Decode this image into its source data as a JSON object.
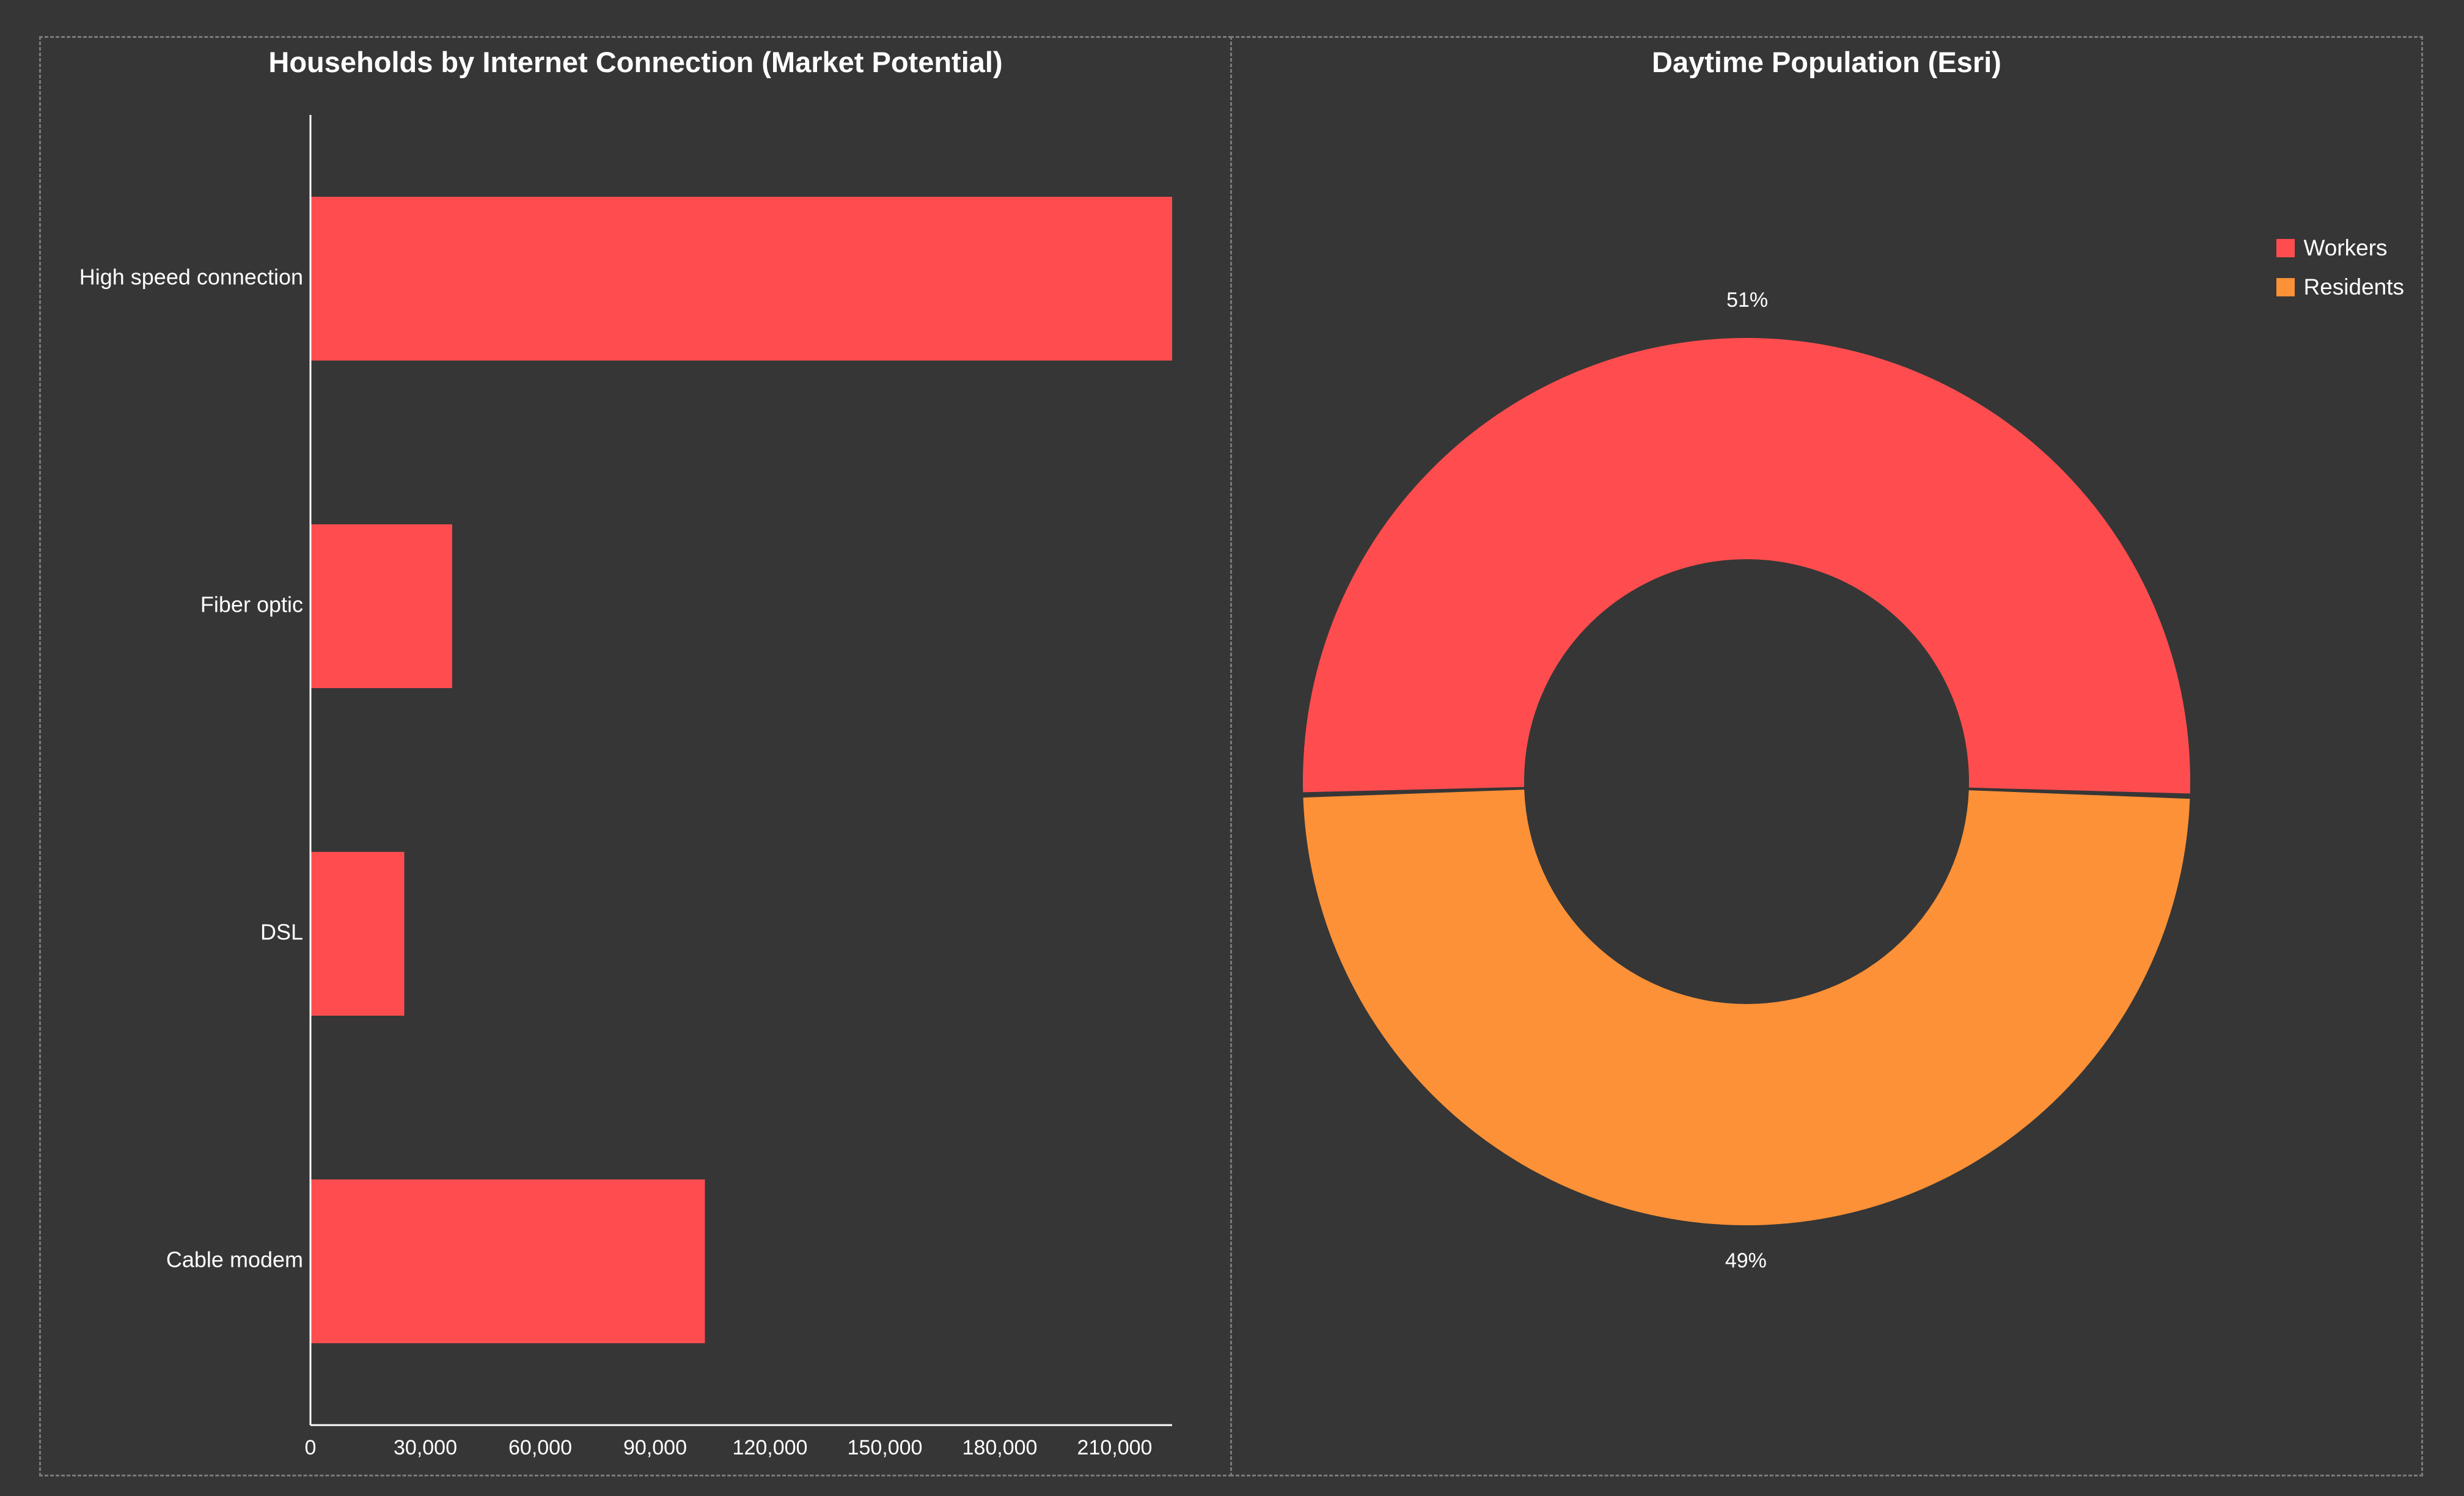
{
  "chart_data": [
    {
      "type": "bar",
      "orientation": "horizontal",
      "title": "Households by Internet Connection (Market Potential)",
      "categories": [
        "High speed connection",
        "Fiber optic",
        "DSL",
        "Cable modem"
      ],
      "values": [
        225000,
        37000,
        24500,
        103000
      ],
      "xlim": [
        0,
        225000
      ],
      "xticks": [
        0,
        30000,
        60000,
        90000,
        120000,
        150000,
        180000,
        210000
      ],
      "xtick_labels": [
        "0",
        "30,000",
        "60,000",
        "90,000",
        "120,000",
        "150,000",
        "180,000",
        "210,000"
      ],
      "grid": false,
      "color": "#ff4d4f"
    },
    {
      "type": "pie",
      "donut": true,
      "title": "Daytime Population (Esri)",
      "labels": [
        "Workers",
        "Residents"
      ],
      "values": [
        51,
        49
      ],
      "value_labels": [
        "51%",
        "49%"
      ],
      "colors": [
        "#ff4d4f",
        "#fd9137"
      ],
      "legend": "top-right"
    }
  ]
}
